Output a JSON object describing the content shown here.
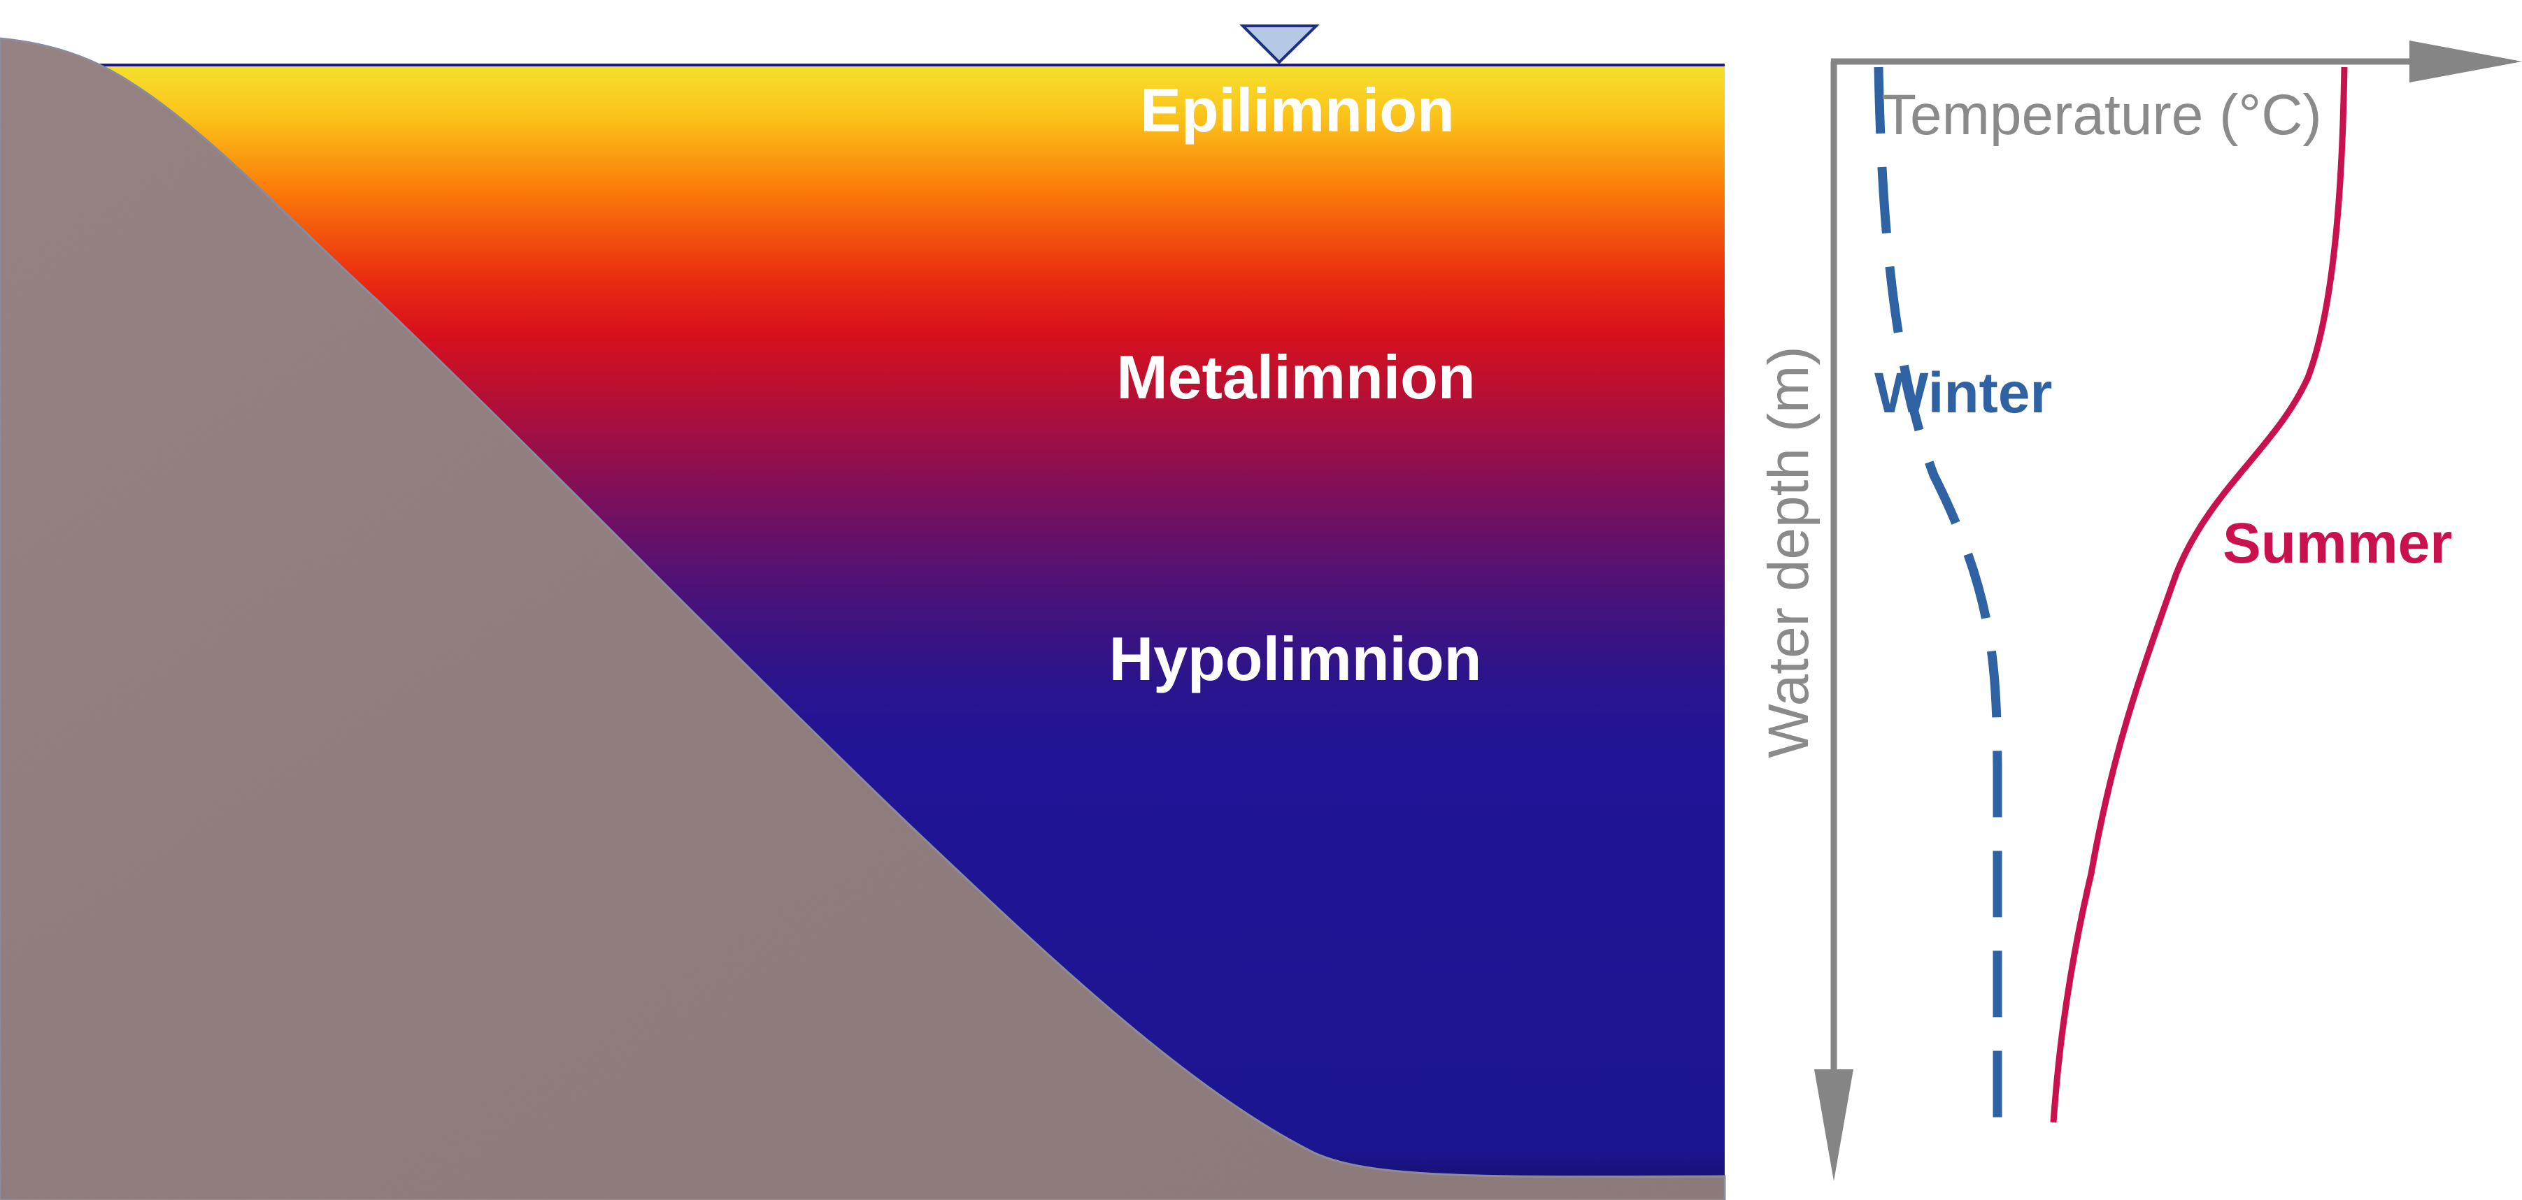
{
  "lake": {
    "layers": [
      {
        "name": "epilimnion",
        "label": "Epilimnion"
      },
      {
        "name": "metalimnion",
        "label": "Metalimnion"
      },
      {
        "name": "hypolimnion",
        "label": "Hypolimnion"
      }
    ],
    "colors": {
      "surface_yellow": "#f5e02e",
      "warm_orange": "#fb7d09",
      "thermocline_red": "#e0111a",
      "cold_blue": "#1f1596",
      "sediment": "#8f7b7b",
      "water_level_marker": "#b3c9e6"
    }
  },
  "profile": {
    "x_axis_label": "Temperature (°C)",
    "y_axis_label": "Water depth (m)",
    "axis_color": "#858585",
    "series": [
      {
        "name": "Winter",
        "color": "#2f62a3",
        "line_style": "dashed"
      },
      {
        "name": "Summer",
        "color": "#c8114d",
        "line_style": "solid"
      }
    ]
  }
}
